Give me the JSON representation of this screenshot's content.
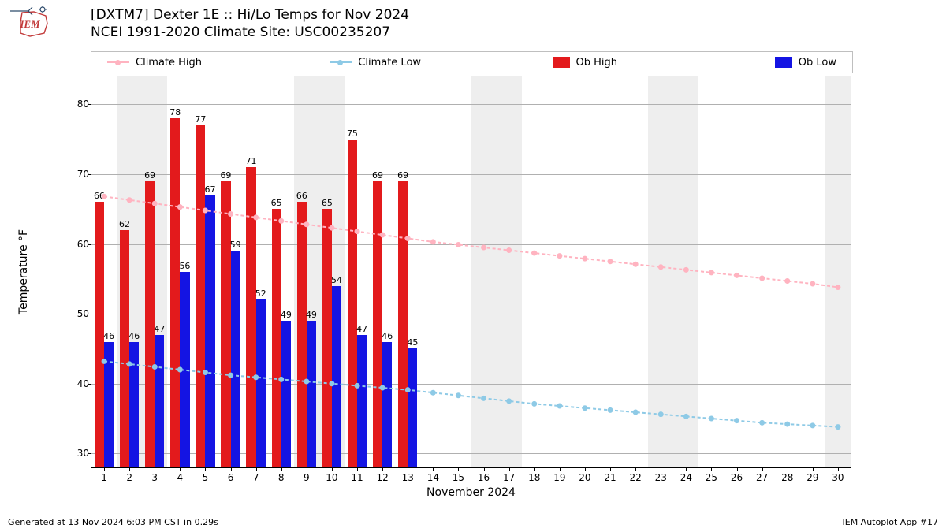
{
  "title_line1": "[DXTM7] Dexter 1E :: Hi/Lo Temps for Nov 2024",
  "title_line2": "NCEI 1991-2020 Climate Site: USC00235207",
  "footer_left": "Generated at 13 Nov 2024 6:03 PM CST in 0.29s",
  "footer_right": "IEM Autoplot App #17",
  "legend": {
    "climate_high": "Climate High",
    "climate_low": "Climate Low",
    "ob_high": "Ob High",
    "ob_low": "Ob Low"
  },
  "chart": {
    "type": "bar+line",
    "x_axis_title": "November 2024",
    "y_axis_title": "Temperature °F",
    "ylim": [
      28,
      84
    ],
    "y_ticks": [
      30,
      40,
      50,
      60,
      70,
      80
    ],
    "x_days": [
      1,
      2,
      3,
      4,
      5,
      6,
      7,
      8,
      9,
      10,
      11,
      12,
      13,
      14,
      15,
      16,
      17,
      18,
      19,
      20,
      21,
      22,
      23,
      24,
      25,
      26,
      27,
      28,
      29,
      30
    ],
    "bar_colors": {
      "ob_high": "#e31a1c",
      "ob_low": "#1414e3"
    },
    "line_colors": {
      "climate_high": "#ffb3c0",
      "climate_low": "#8ecae6"
    },
    "weekend_band_color": "#eeeeee",
    "grid_color": "#b0b0b0",
    "background_color": "#ffffff",
    "bar_width_ratio": 0.38,
    "weekend_pairs": [
      [
        2,
        3
      ],
      [
        9,
        10
      ],
      [
        16,
        17
      ],
      [
        23,
        24
      ],
      [
        30,
        30
      ]
    ],
    "ob_high": [
      66,
      62,
      69,
      78,
      77,
      69,
      71,
      65,
      66,
      65,
      75,
      69,
      69
    ],
    "ob_low": [
      46,
      46,
      47,
      56,
      67,
      59,
      52,
      49,
      49,
      54,
      47,
      46,
      45
    ],
    "climate_high": [
      66.8,
      66.3,
      65.8,
      65.3,
      64.8,
      64.3,
      63.8,
      63.3,
      62.8,
      62.3,
      61.8,
      61.3,
      60.8,
      60.3,
      59.9,
      59.5,
      59.1,
      58.7,
      58.3,
      57.9,
      57.5,
      57.1,
      56.7,
      56.3,
      55.9,
      55.5,
      55.1,
      54.7,
      54.3,
      53.8
    ],
    "climate_low": [
      43.2,
      42.8,
      42.4,
      42.0,
      41.6,
      41.2,
      40.9,
      40.6,
      40.3,
      40.0,
      39.7,
      39.4,
      39.1,
      38.7,
      38.3,
      37.9,
      37.5,
      37.1,
      36.8,
      36.5,
      36.2,
      35.9,
      35.6,
      35.3,
      35.0,
      34.7,
      34.4,
      34.2,
      34.0,
      33.8
    ]
  },
  "logo": {
    "text": "IEM",
    "accent_color": "#c23a3a",
    "line_color": "#2c4a6b"
  }
}
